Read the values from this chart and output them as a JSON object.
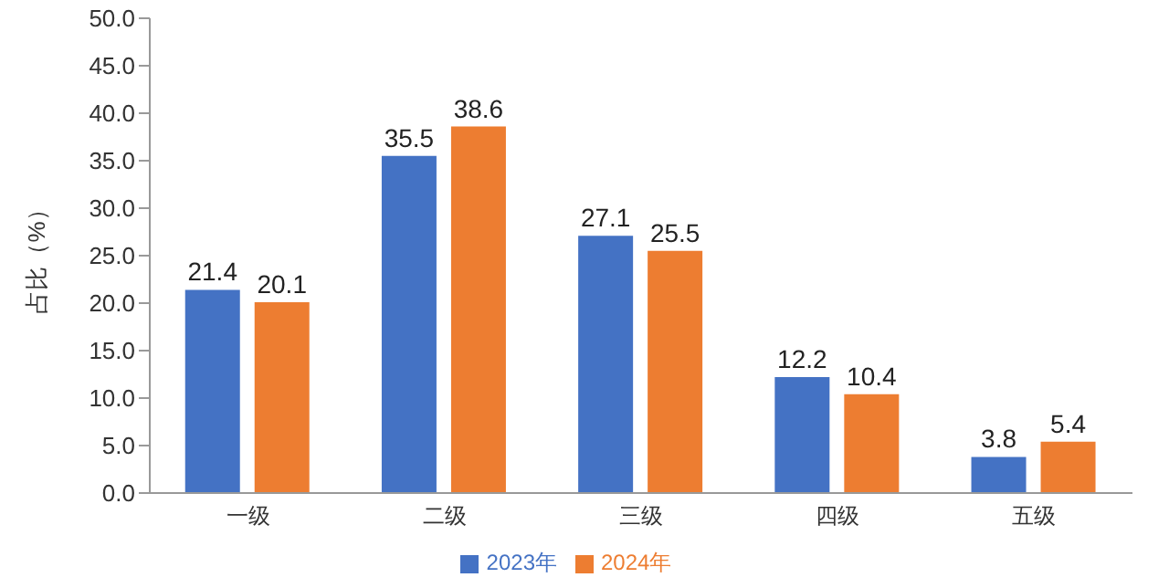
{
  "chart_data": {
    "type": "bar",
    "ylabel": "占比（%）",
    "categories": [
      "一级",
      "二级",
      "三级",
      "四级",
      "五级"
    ],
    "series": [
      {
        "name": "2023年",
        "color": "#4472c4",
        "values": [
          21.4,
          35.5,
          27.1,
          12.2,
          3.8
        ]
      },
      {
        "name": "2024年",
        "color": "#ed7d31",
        "values": [
          20.1,
          38.6,
          25.5,
          10.4,
          5.4
        ]
      }
    ],
    "ylim": [
      0,
      50
    ],
    "yticks": [
      {
        "value": 0,
        "label": "0.0"
      },
      {
        "value": 5,
        "label": "5.0"
      },
      {
        "value": 10,
        "label": "10.0"
      },
      {
        "value": 15,
        "label": "15.0"
      },
      {
        "value": 20,
        "label": "20.0"
      },
      {
        "value": 25,
        "label": "25.0"
      },
      {
        "value": 30,
        "label": "30.0"
      },
      {
        "value": 35,
        "label": "35.0"
      },
      {
        "value": 40,
        "label": "40.0"
      },
      {
        "value": 45,
        "label": "45.0"
      },
      {
        "value": 50,
        "label": "50.0"
      }
    ],
    "grid": false,
    "legend": "bottom",
    "data_labels": true
  }
}
